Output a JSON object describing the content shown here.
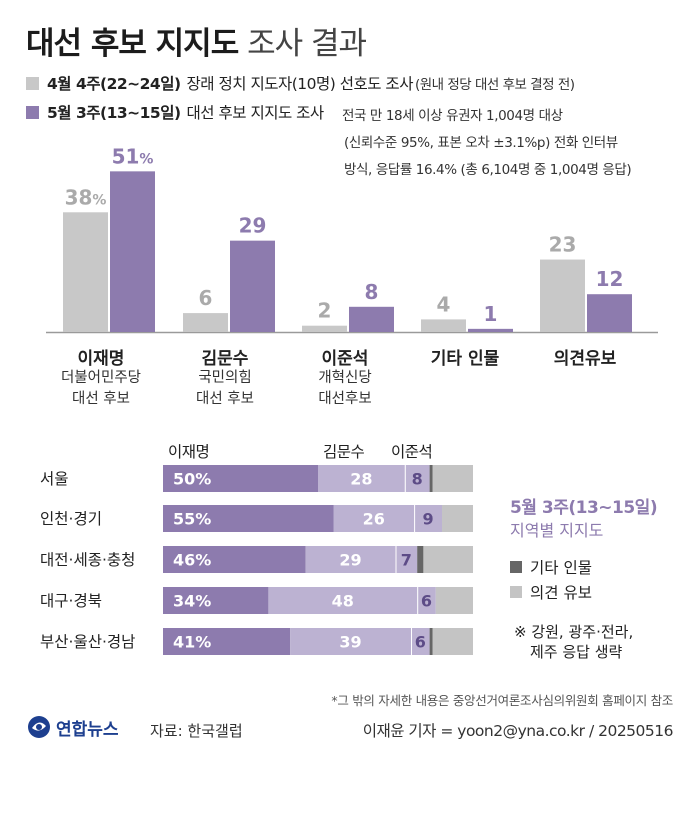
{
  "title": {
    "bold": "대선 후보 지지도",
    "light": "조사 결과"
  },
  "legend": {
    "april": {
      "label": "4월 4주(22~24일)",
      "desc": "장래 정치 지도자(10명) 선호도 조사",
      "note": "(원내 정당 대선 후보 결정 전)",
      "color": "#c8c8c8"
    },
    "may": {
      "label": "5월 3주(13~15일)",
      "desc": "대선 후보 지지도 조사",
      "color": "#8d7bae"
    }
  },
  "survey_note": [
    "전국 만 18세 이상 유권자 1,004명 대상",
    "(신뢰수준 95%, 표본 오차 ±3.1%p) 전화 인터뷰",
    "방식, 응답률 16.4% (총 6,104명 중 1,004명 응답)"
  ],
  "candidates": [
    {
      "name": "이재명",
      "sub": [
        "더불어민주당",
        "대선 후보"
      ]
    },
    {
      "name": "김문수",
      "sub": [
        "국민의힘",
        "대선 후보"
      ]
    },
    {
      "name": "이준석",
      "sub": [
        "개혁신당",
        "대선후보"
      ]
    },
    {
      "name": "기타 인물",
      "sub": []
    },
    {
      "name": "의견유보",
      "sub": []
    }
  ],
  "regional_headers": [
    "이재명",
    "김문수",
    "이준석"
  ],
  "side": {
    "title": "5월 3주(13~15일)",
    "subtitle": "지역별 지지도",
    "legend_other": "기타 인물",
    "legend_reserve": "의견 유보",
    "note": [
      "※ 강원, 광주·전라,",
      "제주 응답 생략"
    ]
  },
  "colors": {
    "lee": "#8d7bae",
    "kim": "#bcb2d2",
    "other": "#666666",
    "reserve": "#c4c4c4",
    "april": "#c8c8c8"
  },
  "chart_data": [
    {
      "type": "bar",
      "title": "대선 후보 지지도 조사 결과",
      "categories": [
        "이재명",
        "김문수",
        "이준석",
        "기타 인물",
        "의견유보"
      ],
      "series": [
        {
          "name": "4월 4주(22~24일)",
          "values": [
            38,
            6,
            2,
            4,
            23
          ],
          "labels": [
            "38%",
            "6",
            "2",
            "4",
            "23"
          ]
        },
        {
          "name": "5월 3주(13~15일)",
          "values": [
            51,
            29,
            8,
            1,
            12
          ],
          "labels": [
            "51%",
            "29",
            "8",
            "1",
            "12"
          ]
        }
      ],
      "ylim": [
        0,
        55
      ],
      "unit": "%"
    },
    {
      "type": "bar",
      "stacked": true,
      "orientation": "horizontal",
      "title": "5월 3주(13~15일) 지역별 지지도",
      "categories": [
        "서울",
        "인천·경기",
        "대전·세종·충청",
        "대구·경북",
        "부산·울산·경남"
      ],
      "series": [
        {
          "name": "이재명",
          "values": [
            50,
            55,
            46,
            34,
            41
          ],
          "labels": [
            "50%",
            "55%",
            "46%",
            "34%",
            "41%"
          ]
        },
        {
          "name": "김문수",
          "values": [
            28,
            26,
            29,
            48,
            39
          ],
          "labels": [
            "28",
            "26",
            "29",
            "48",
            "39"
          ]
        },
        {
          "name": "이준석",
          "values": [
            8,
            9,
            7,
            6,
            6
          ],
          "labels": [
            "8",
            "9",
            "7",
            "6",
            "6"
          ]
        },
        {
          "name": "기타 인물",
          "values": [
            1,
            0,
            2,
            0,
            1
          ]
        },
        {
          "name": "의견 유보",
          "values": [
            13,
            10,
            16,
            12,
            13
          ]
        }
      ],
      "xlim": [
        0,
        100
      ]
    }
  ],
  "footnote": "*그 밖의 자세한 내용은 중앙선거여론조사심의위원회 홈페이지 참조",
  "footer": {
    "logo": "연합뉴스",
    "source": "자료: 한국갤럽",
    "credit": "이재윤 기자 = yoon2@yna.co.kr / 20250516"
  }
}
